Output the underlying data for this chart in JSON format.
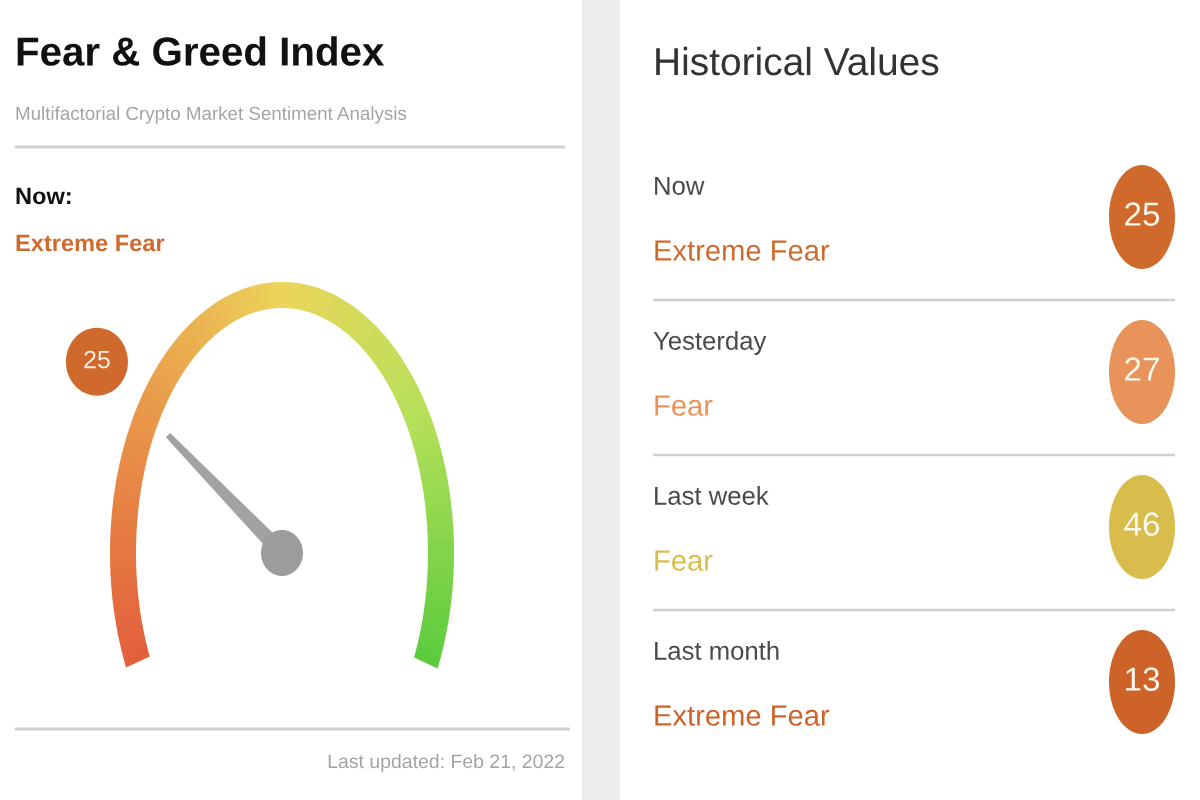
{
  "chart_data": [
    {
      "type": "other",
      "title": "Fear & Greed Index",
      "subtitle": "Multifactorial Crypto Market Sentiment Analysis",
      "values": [
        25
      ],
      "colors": [
        "#d0692c"
      ],
      "value_labels": [
        "25"
      ],
      "annotations": [
        "Now:",
        "Extreme Fear",
        "Last updated: Feb 21, 2022"
      ]
    },
    {
      "type": "other",
      "title": "Historical Values",
      "values": [
        25,
        27,
        46,
        13
      ],
      "colors": [
        "#d0692c",
        "#e8935a",
        "#d8bc4c",
        "#cd6328"
      ],
      "value_labels": [
        "25",
        "27",
        "46",
        "13"
      ],
      "annotations": [
        "Now",
        "Extreme Fear",
        "Yesterday",
        "Fear",
        "Last week",
        "Fear",
        "Last month",
        "Extreme Fear"
      ]
    }
  ]
}
